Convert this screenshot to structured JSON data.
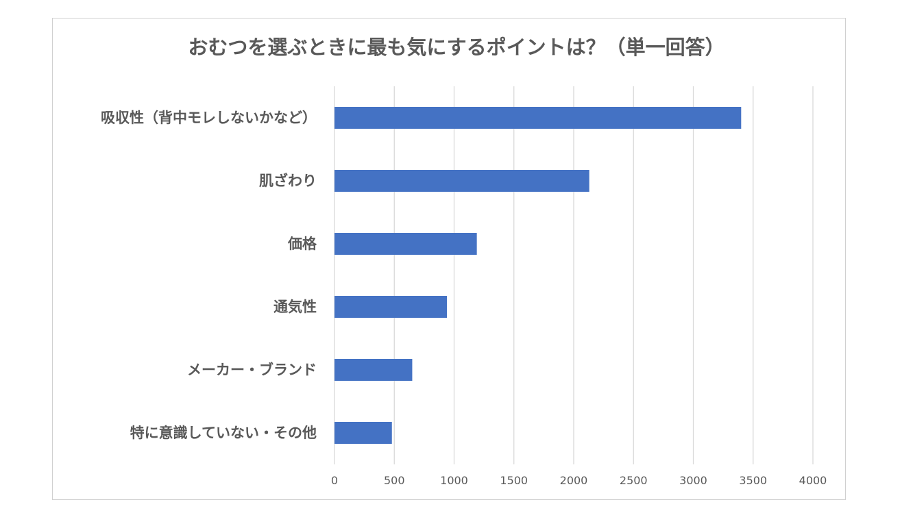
{
  "chart_data": {
    "type": "bar",
    "orientation": "horizontal",
    "title": "おむつを選ぶときに最も気にするポイントは？（単一回答）",
    "categories": [
      "吸収性（背中モレしないかなど）",
      "肌ざわり",
      "価格",
      "通気性",
      "メーカー・ブランド",
      "特に意識していない・その他"
    ],
    "values": [
      3400,
      2130,
      1190,
      940,
      650,
      480
    ],
    "xlim": [
      0,
      4000
    ],
    "xticks": [
      0,
      500,
      1000,
      1500,
      2000,
      2500,
      3000,
      3500,
      4000
    ],
    "grid": true,
    "bar_color": "#4472c4",
    "xlabel": "",
    "ylabel": ""
  }
}
